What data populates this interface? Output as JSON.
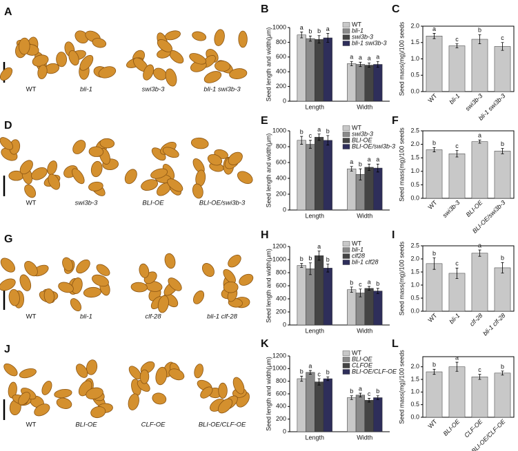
{
  "photo_panels": [
    {
      "label": "A",
      "genotypes": [
        "WT",
        "bli-1",
        "swi3b-3",
        "bli-1 swi3b-3"
      ]
    },
    {
      "label": "D",
      "genotypes": [
        "WT",
        "swi3b-3",
        "BLI-OE",
        "BLI-OE/swi3b-3"
      ]
    },
    {
      "label": "G",
      "genotypes": [
        "WT",
        "bli-1",
        "clf-28",
        "bli-1 clf-28"
      ]
    },
    {
      "label": "J",
      "genotypes": [
        "WT",
        "BLI-OE",
        "CLF-OE",
        "BLI-OE/CLF-OE"
      ]
    }
  ],
  "chart_data": [
    {
      "label": "B",
      "type": "bar",
      "ylabel": "Seed length and width(μm)",
      "categories": [
        "Length",
        "Width"
      ],
      "ylim": [
        0,
        1000
      ],
      "yticks": [
        0,
        200,
        400,
        600,
        800,
        1000
      ],
      "legend": "upper right",
      "series": [
        {
          "name": "WT",
          "color": "#c8c8c8",
          "values": [
            900,
            510
          ],
          "errors": [
            40,
            30
          ],
          "letters": [
            "a",
            "a"
          ]
        },
        {
          "name": "bli-1",
          "color": "#8a8a8a",
          "values": [
            850,
            500
          ],
          "errors": [
            35,
            30
          ],
          "letters": [
            "b",
            "a"
          ]
        },
        {
          "name": "swi3b-3",
          "color": "#444444",
          "values": [
            840,
            490
          ],
          "errors": [
            50,
            30
          ],
          "letters": [
            "b",
            "a"
          ]
        },
        {
          "name": "bli-1 swi3b-3",
          "color": "#2e2e5a",
          "values": [
            860,
            500
          ],
          "errors": [
            60,
            40
          ],
          "letters": [
            "a",
            "a"
          ]
        }
      ]
    },
    {
      "label": "C",
      "type": "bar",
      "ylabel": "Seed mass(mg)/100 seeds",
      "categories": [
        "WT",
        "bli-1",
        "swi3b-3",
        "bli-1 swi3b-3"
      ],
      "ylim": [
        0,
        2.0
      ],
      "yticks": [
        {
          "value": 0,
          "label": "0.0"
        },
        0.5,
        {
          "value": 1,
          "label": "1.0"
        },
        1.5,
        {
          "value": 2,
          "label": "2.0"
        }
      ],
      "color": "#c8c8c8",
      "values": [
        1.7,
        1.4,
        1.6,
        1.38
      ],
      "errors": [
        0.08,
        0.06,
        0.14,
        0.12
      ],
      "letters": [
        "a",
        "c",
        "b",
        "c"
      ]
    },
    {
      "label": "E",
      "type": "bar",
      "ylabel": "Seed length and width(μm)",
      "categories": [
        "Length",
        "Width"
      ],
      "ylim": [
        0,
        1000
      ],
      "yticks": [
        0,
        200,
        400,
        600,
        800,
        1000
      ],
      "legend": "upper right",
      "series": [
        {
          "name": "WT",
          "color": "#c8c8c8",
          "values": [
            880,
            520
          ],
          "errors": [
            50,
            30
          ],
          "letters": [
            "b",
            "a"
          ]
        },
        {
          "name": "swi3b-3",
          "color": "#8a8a8a",
          "values": [
            830,
            450
          ],
          "errors": [
            50,
            70
          ],
          "letters": [
            "c",
            "b"
          ]
        },
        {
          "name": "BLI-OE",
          "color": "#444444",
          "values": [
            920,
            540
          ],
          "errors": [
            40,
            40
          ],
          "letters": [
            "a",
            "a"
          ]
        },
        {
          "name": "BLI-OE/swi3b-3",
          "color": "#2e2e5a",
          "values": [
            880,
            530
          ],
          "errors": [
            60,
            50
          ],
          "letters": [
            "b",
            "a"
          ]
        }
      ]
    },
    {
      "label": "F",
      "type": "bar",
      "ylabel": "Seed mass(mg)/100 seeds",
      "categories": [
        "WT",
        "swi3b-3",
        "BLI-OE",
        "BLI-OE/swi3b-3"
      ],
      "ylim": [
        0,
        2.5
      ],
      "yticks": [
        {
          "value": 0,
          "label": "0.0"
        },
        0.5,
        {
          "value": 1,
          "label": "1.0"
        },
        1.5,
        {
          "value": 2,
          "label": "2.0"
        },
        2.5
      ],
      "color": "#c8c8c8",
      "values": [
        1.8,
        1.65,
        2.1,
        1.75
      ],
      "errors": [
        0.08,
        0.12,
        0.06,
        0.1
      ],
      "letters": [
        "b",
        "c",
        "a",
        "b"
      ]
    },
    {
      "label": "H",
      "type": "bar",
      "ylabel": "Seed length and width(μm)",
      "categories": [
        "Length",
        "Width"
      ],
      "ylim": [
        0,
        1200
      ],
      "yticks": [
        0,
        200,
        400,
        600,
        800,
        1000,
        1200
      ],
      "legend": "upper right",
      "series": [
        {
          "name": "WT",
          "color": "#c8c8c8",
          "values": [
            910,
            540
          ],
          "errors": [
            30,
            40
          ],
          "letters": [
            "b",
            "b"
          ]
        },
        {
          "name": "bli-1",
          "color": "#8a8a8a",
          "values": [
            860,
            490
          ],
          "errors": [
            90,
            60
          ],
          "letters": [
            "b",
            "c"
          ]
        },
        {
          "name": "clf28",
          "color": "#444444",
          "values": [
            1060,
            560
          ],
          "errors": [
            70,
            30
          ],
          "letters": [
            "a",
            "a"
          ]
        },
        {
          "name": "bli-1 clf28",
          "color": "#2e2e5a",
          "values": [
            870,
            520
          ],
          "errors": [
            60,
            40
          ],
          "letters": [
            "b",
            "b"
          ]
        }
      ]
    },
    {
      "label": "I",
      "type": "bar",
      "ylabel": "Seed mass(mg)/100 seeds",
      "categories": [
        "WT",
        "bli-1",
        "clf-28",
        "bli-1 clf-28"
      ],
      "ylim": [
        0,
        2.5
      ],
      "yticks": [
        {
          "value": 0,
          "label": "0.0"
        },
        0.5,
        {
          "value": 1,
          "label": "1.0"
        },
        1.5,
        {
          "value": 2,
          "label": "2.0"
        },
        2.5
      ],
      "color": "#c8c8c8",
      "values": [
        1.82,
        1.45,
        2.22,
        1.66
      ],
      "errors": [
        0.22,
        0.2,
        0.12,
        0.2
      ],
      "letters": [
        "b",
        "c",
        "a",
        "b"
      ]
    },
    {
      "label": "K",
      "type": "bar",
      "ylabel": "Seed length and width(μm)",
      "categories": [
        "Length",
        "Width"
      ],
      "ylim": [
        0,
        1200
      ],
      "yticks": [
        0,
        200,
        400,
        600,
        800,
        1000,
        1200
      ],
      "legend": "upper right",
      "series": [
        {
          "name": "WT",
          "color": "#c8c8c8",
          "values": [
            840,
            540
          ],
          "errors": [
            40,
            30
          ],
          "letters": [
            "b",
            "b"
          ]
        },
        {
          "name": "BLI-OE",
          "color": "#8a8a8a",
          "values": [
            940,
            580
          ],
          "errors": [
            30,
            30
          ],
          "letters": [
            "a",
            "a"
          ]
        },
        {
          "name": "CLFOE",
          "color": "#444444",
          "values": [
            790,
            500
          ],
          "errors": [
            50,
            30
          ],
          "letters": [
            "c",
            "c"
          ]
        },
        {
          "name": "BLI-OE/CLF-OE",
          "color": "#2e2e5a",
          "values": [
            840,
            540
          ],
          "errors": [
            30,
            30
          ],
          "letters": [
            "b",
            "b"
          ]
        }
      ]
    },
    {
      "label": "L",
      "type": "bar",
      "ylabel": "Seed mass(mg)/100 seeds",
      "categories": [
        "WT",
        "BLI-OE",
        "CLF-OE",
        "BLI-OE/CLF-OE"
      ],
      "ylim": [
        0,
        2.4
      ],
      "yticks": [
        {
          "value": 0,
          "label": "0.0"
        },
        0.5,
        {
          "value": 1,
          "label": "1.0"
        },
        1.5,
        {
          "value": 2,
          "label": "2.0"
        }
      ],
      "color": "#c8c8c8",
      "values": [
        1.8,
        2.0,
        1.6,
        1.75
      ],
      "errors": [
        0.1,
        0.18,
        0.1,
        0.08
      ],
      "letters": [
        "b",
        "a",
        "c",
        "b"
      ]
    }
  ]
}
